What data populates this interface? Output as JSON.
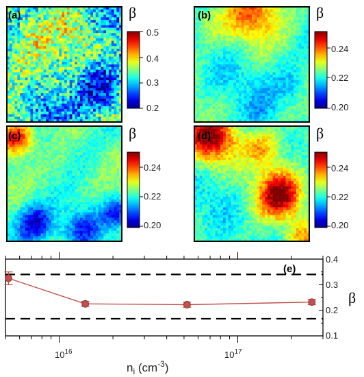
{
  "maps": [
    {
      "label": "(a)",
      "colorbar": {
        "symbol": "β",
        "ticks": [
          "0.5",
          "0.4",
          "0.3",
          "0.2"
        ],
        "range": [
          0.2,
          0.5
        ]
      }
    },
    {
      "label": "(b)",
      "colorbar": {
        "symbol": "β",
        "ticks": [
          "0.24",
          "0.22",
          "0.20"
        ],
        "range": [
          0.2,
          0.25
        ]
      }
    },
    {
      "label": "(c)",
      "colorbar": {
        "symbol": "β",
        "ticks": [
          "0.24",
          "0.22",
          "0.20"
        ],
        "range": [
          0.2,
          0.25
        ]
      }
    },
    {
      "label": "(d)",
      "colorbar": {
        "symbol": "β",
        "ticks": [
          "0.24",
          "0.22",
          "0.20"
        ],
        "range": [
          0.2,
          0.25
        ]
      }
    }
  ],
  "chart_data": {
    "type": "line",
    "label": "(e)",
    "xlabel_main": "n",
    "xlabel_sub": "i",
    "xlabel_unit": " (cm",
    "xlabel_exp": "-3",
    "xlabel_close": ")",
    "ylabel": "β",
    "xscale": "log",
    "xlim": [
      5000000000000000.0,
      3e+17
    ],
    "ylim": [
      0.1,
      0.4
    ],
    "x_tick_labels": [
      {
        "base": "10",
        "exp": "16",
        "value": 1e+16
      },
      {
        "base": "10",
        "exp": "17",
        "value": 1e+17
      }
    ],
    "y_tick_labels": [
      "0.4",
      "0.3",
      "0.2",
      "0.1"
    ],
    "reference_lines": [
      0.34,
      0.167
    ],
    "series": [
      {
        "x": [
          5200000000000000.0,
          1.4e+16,
          5.2e+16,
          2.6e+17
        ],
        "y": [
          0.325,
          0.225,
          0.222,
          0.232
        ],
        "err": [
          0.025,
          0.01,
          0.01,
          0.01
        ],
        "color": "#c0504d"
      }
    ]
  }
}
